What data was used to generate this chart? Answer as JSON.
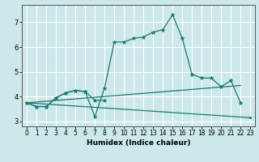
{
  "xlabel": "Humidex (Indice chaleur)",
  "xlim": [
    -0.5,
    23.5
  ],
  "ylim": [
    2.8,
    7.7
  ],
  "yticks": [
    3,
    4,
    5,
    6,
    7
  ],
  "xticks": [
    0,
    1,
    2,
    3,
    4,
    5,
    6,
    7,
    8,
    9,
    10,
    11,
    12,
    13,
    14,
    15,
    16,
    17,
    18,
    19,
    20,
    21,
    22,
    23
  ],
  "bg_color": "#cce8e8",
  "grid_color": "#ffffff",
  "line_color": "#1a7a6e",
  "series1_x": [
    0,
    1,
    2,
    3,
    4,
    5,
    6,
    7,
    8,
    9,
    10,
    11,
    12,
    13,
    14,
    15,
    16,
    17,
    18,
    19,
    20,
    21,
    22
  ],
  "series1_y": [
    3.75,
    3.6,
    3.6,
    3.95,
    4.15,
    4.25,
    4.2,
    3.2,
    4.35,
    6.2,
    6.2,
    6.35,
    6.4,
    6.6,
    6.7,
    7.3,
    6.35,
    4.9,
    4.75,
    4.75,
    4.4,
    4.65,
    3.75
  ],
  "series2_x": [
    0,
    1,
    2,
    3,
    4,
    5,
    6,
    7,
    8
  ],
  "series2_y": [
    3.75,
    3.6,
    3.6,
    3.95,
    4.15,
    4.25,
    4.2,
    3.85,
    3.85
  ],
  "line3_x": [
    0,
    22
  ],
  "line3_y": [
    3.75,
    4.45
  ],
  "line4_x": [
    0,
    23
  ],
  "line4_y": [
    3.75,
    3.15
  ],
  "xlabel_fontsize": 6.5,
  "tick_fontsize": 5.5
}
